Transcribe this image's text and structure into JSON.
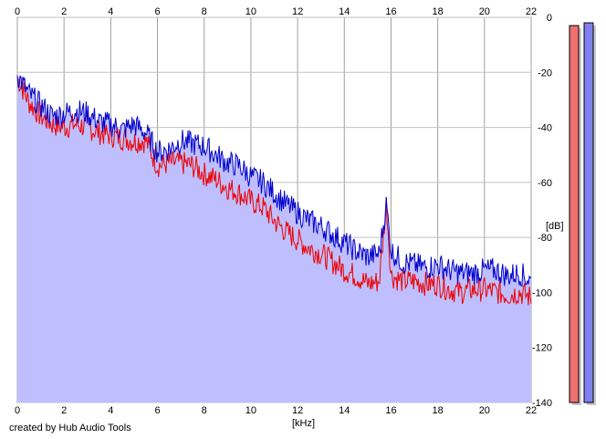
{
  "chart_data": {
    "type": "area",
    "xlabel": "[kHz]",
    "ylabel": "[dB]",
    "xlim": [
      0,
      22
    ],
    "ylim": [
      -140,
      0
    ],
    "x_ticks": [
      0,
      2,
      4,
      6,
      8,
      10,
      12,
      14,
      16,
      18,
      20,
      22
    ],
    "y_ticks": [
      0,
      -20,
      -40,
      -60,
      -80,
      -100,
      -120,
      -140
    ],
    "y_tick_labels": [
      "0",
      "-20",
      "-40",
      "-60",
      "-80",
      "-100",
      "-120",
      "-140"
    ],
    "grid": true,
    "x": [
      0,
      0.5,
      1,
      1.5,
      2,
      2.5,
      3,
      3.5,
      4,
      4.5,
      5,
      5.5,
      6,
      6.5,
      7,
      7.5,
      8,
      8.5,
      9,
      9.5,
      10,
      10.5,
      11,
      11.5,
      12,
      12.5,
      13,
      13.5,
      14,
      14.5,
      15,
      15.5,
      15.8,
      16,
      16.5,
      17,
      17.5,
      18,
      18.5,
      19,
      19.5,
      20,
      20.5,
      21,
      21.5,
      22
    ],
    "series": [
      {
        "name": "",
        "color": "#0000cc",
        "values": [
          -20,
          -27,
          -31,
          -35,
          -34,
          -33,
          -34,
          -37,
          -38,
          -40,
          -38,
          -41,
          -48,
          -47,
          -44,
          -45,
          -46,
          -49,
          -52,
          -53,
          -57,
          -59,
          -63,
          -67,
          -70,
          -73,
          -75,
          -78,
          -81,
          -84,
          -86,
          -85,
          -67,
          -84,
          -88,
          -89,
          -90,
          -89,
          -91,
          -92,
          -92,
          -91,
          -91,
          -93,
          -92,
          -95
        ]
      },
      {
        "name": "",
        "color": "#ee0000",
        "values": [
          -21,
          -30,
          -35,
          -38,
          -39,
          -38,
          -39,
          -41,
          -42,
          -43,
          -44,
          -44,
          -53,
          -52,
          -52,
          -53,
          -56,
          -58,
          -61,
          -63,
          -66,
          -68,
          -73,
          -77,
          -80,
          -83,
          -85,
          -88,
          -91,
          -93,
          -96,
          -95,
          -66,
          -93,
          -95,
          -95,
          -96,
          -96,
          -98,
          -99,
          -98,
          -98,
          -99,
          -100,
          -99,
          -101
        ]
      }
    ],
    "fill_color": "#bfbfff",
    "level_meters": [
      {
        "name": "",
        "color": "#ee7070",
        "level_db": -3
      },
      {
        "name": "",
        "color": "#8080ee",
        "level_db": -2
      }
    ]
  },
  "footer": {
    "credit": "created by Hub Audio Tools"
  }
}
